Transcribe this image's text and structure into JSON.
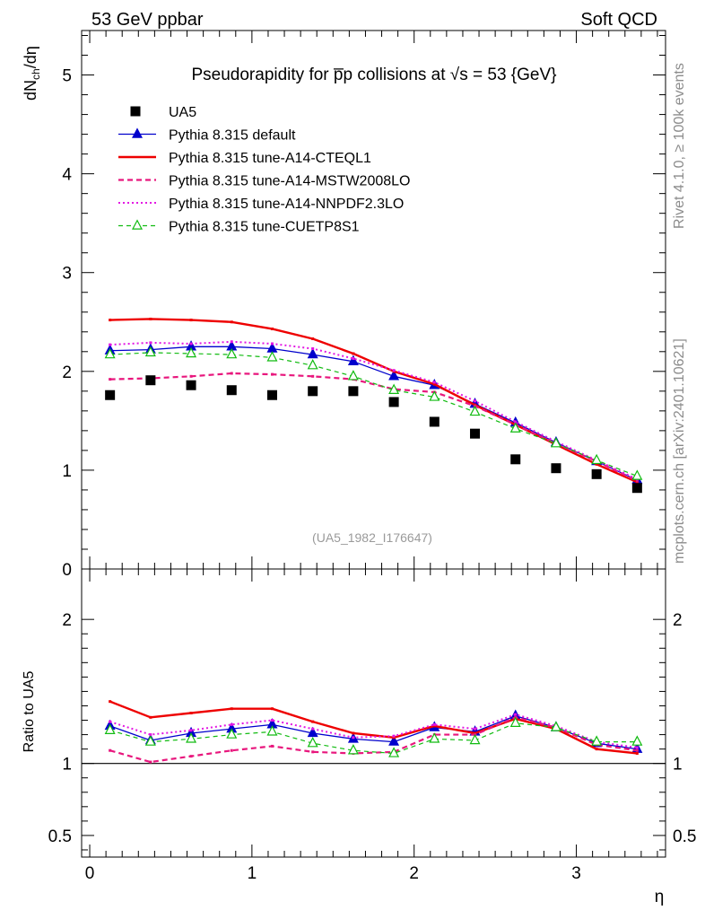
{
  "header": {
    "left": "53 GeV ppbar",
    "right": "Soft QCD"
  },
  "side_labels": {
    "rivet": "Rivet 4.1.0, ≥ 100k events",
    "mcplots": "mcplots.cern.ch [arXiv:2401.10621]"
  },
  "colors": {
    "data": "#000000",
    "default": "#0000cc",
    "cteql1": "#ee0000",
    "mstw": "#e8177d",
    "nnpdf": "#e316e3",
    "cuetp8s1": "#11bb11"
  },
  "chart_data": [
    {
      "type": "line",
      "title": "Pseudorapidity for p̅p collisions at √s = 53 {GeV}",
      "xlabel": "η",
      "ylabel": "dN_ch/dη",
      "reference": "(UA5_1982_I176647)",
      "xlim": [
        -0.05,
        3.55
      ],
      "ylim": [
        0,
        5.45
      ],
      "yticks": [
        "1",
        "2",
        "3",
        "4",
        "5"
      ],
      "y0_label": "0",
      "legend": "top-left",
      "x": [
        0.125,
        0.375,
        0.625,
        0.875,
        1.125,
        1.375,
        1.625,
        1.875,
        2.125,
        2.375,
        2.625,
        2.875,
        3.125,
        3.375
      ],
      "series": [
        {
          "name": "UA5",
          "key": "data",
          "style": "marker",
          "values": [
            1.76,
            1.91,
            1.86,
            1.81,
            1.76,
            1.8,
            1.8,
            1.69,
            1.49,
            1.37,
            1.11,
            1.02,
            0.96,
            0.82
          ]
        },
        {
          "name": "Pythia 8.315 default",
          "key": "default",
          "style": "solid-triangle",
          "values": [
            2.21,
            2.22,
            2.25,
            2.25,
            2.23,
            2.17,
            2.1,
            1.95,
            1.86,
            1.67,
            1.48,
            1.28,
            1.09,
            0.9
          ]
        },
        {
          "name": "Pythia 8.315 tune-A14-CTEQL1",
          "key": "cteql1",
          "style": "solid-thick",
          "values": [
            2.52,
            2.53,
            2.52,
            2.5,
            2.43,
            2.33,
            2.18,
            2.0,
            1.87,
            1.66,
            1.46,
            1.26,
            1.06,
            0.88
          ]
        },
        {
          "name": "Pythia 8.315 tune-A14-MSTW2008LO",
          "key": "mstw",
          "style": "dashed-thick",
          "values": [
            1.92,
            1.93,
            1.95,
            1.98,
            1.97,
            1.95,
            1.92,
            1.82,
            1.79,
            1.65,
            1.46,
            1.27,
            1.09,
            0.89
          ]
        },
        {
          "name": "Pythia 8.315 tune-A14-NNPDF2.3LO",
          "key": "nnpdf",
          "style": "dotted",
          "values": [
            2.27,
            2.29,
            2.28,
            2.3,
            2.28,
            2.23,
            2.13,
            2.01,
            1.89,
            1.7,
            1.49,
            1.29,
            1.1,
            0.91
          ]
        },
        {
          "name": "Pythia 8.315 tune-CUETP8S1",
          "key": "cuetp8s1",
          "style": "dashed-open-triangle",
          "values": [
            2.17,
            2.19,
            2.18,
            2.17,
            2.14,
            2.06,
            1.95,
            1.81,
            1.74,
            1.59,
            1.42,
            1.27,
            1.1,
            0.94
          ]
        }
      ]
    },
    {
      "type": "line",
      "title": "",
      "xlabel": "η",
      "ylabel": "Ratio to UA5",
      "xlim": [
        -0.05,
        3.55
      ],
      "ylim": [
        0.35,
        2.35
      ],
      "xticks": [
        "0",
        "1",
        "2",
        "3"
      ],
      "yticks": [
        "0.5",
        "1",
        "2"
      ],
      "reference_line": 1,
      "x": [
        0.125,
        0.375,
        0.625,
        0.875,
        1.125,
        1.375,
        1.625,
        1.875,
        2.125,
        2.375,
        2.625,
        2.875,
        3.125,
        3.375
      ],
      "series": [
        {
          "name": "Pythia 8.315 default",
          "key": "default",
          "style": "solid-triangle",
          "values": [
            1.26,
            1.16,
            1.21,
            1.24,
            1.27,
            1.21,
            1.17,
            1.15,
            1.25,
            1.22,
            1.33,
            1.25,
            1.14,
            1.1
          ]
        },
        {
          "name": "Pythia 8.315 tune-A14-CTEQL1",
          "key": "cteql1",
          "style": "solid-thick",
          "values": [
            1.43,
            1.32,
            1.35,
            1.38,
            1.38,
            1.29,
            1.21,
            1.18,
            1.26,
            1.21,
            1.31,
            1.24,
            1.1,
            1.07
          ]
        },
        {
          "name": "Pythia 8.315 tune-A14-MSTW2008LO",
          "key": "mstw",
          "style": "dashed-thick",
          "values": [
            1.09,
            1.01,
            1.05,
            1.09,
            1.12,
            1.08,
            1.07,
            1.08,
            1.2,
            1.2,
            1.32,
            1.25,
            1.13,
            1.09
          ]
        },
        {
          "name": "Pythia 8.315 tune-A14-NNPDF2.3LO",
          "key": "nnpdf",
          "style": "dotted",
          "values": [
            1.29,
            1.2,
            1.23,
            1.27,
            1.3,
            1.24,
            1.18,
            1.19,
            1.27,
            1.24,
            1.34,
            1.26,
            1.15,
            1.11
          ]
        },
        {
          "name": "Pythia 8.315 tune-CUETP8S1",
          "key": "cuetp8s1",
          "style": "dashed-open-triangle",
          "values": [
            1.23,
            1.15,
            1.17,
            1.2,
            1.22,
            1.14,
            1.09,
            1.07,
            1.17,
            1.16,
            1.28,
            1.25,
            1.15,
            1.15
          ]
        }
      ]
    }
  ]
}
